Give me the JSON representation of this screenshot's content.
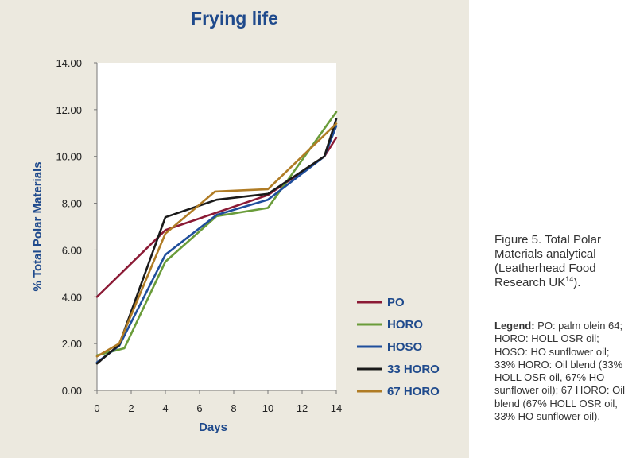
{
  "chart_data": {
    "type": "line",
    "title": "Frying life",
    "xlabel": "Days",
    "ylabel": "% Total Polar Materials",
    "xlim": [
      0,
      14
    ],
    "ylim": [
      0,
      14
    ],
    "xticks": [
      0,
      2,
      4,
      6,
      8,
      10,
      12,
      14
    ],
    "yticks": [
      0,
      2,
      4,
      6,
      8,
      10,
      12,
      14
    ],
    "ytick_labels": [
      "0.00",
      "2.00",
      "4.00",
      "6.00",
      "8.00",
      "10.00",
      "12.00",
      "14.00"
    ],
    "grid": false,
    "legend_position": "bottom-right",
    "series": [
      {
        "name": "PO",
        "color": "#8b1a35",
        "x": [
          0,
          4,
          10,
          13.3,
          14
        ],
        "y": [
          4.0,
          6.85,
          8.35,
          10.0,
          10.8
        ]
      },
      {
        "name": "HORO",
        "color": "#6a9c3a",
        "x": [
          0,
          1.6,
          4,
          7,
          10,
          14
        ],
        "y": [
          1.5,
          1.8,
          5.5,
          7.45,
          7.8,
          11.9
        ]
      },
      {
        "name": "HOSO",
        "color": "#1f4e9c",
        "x": [
          0,
          1.3,
          4,
          7,
          10,
          13.3,
          14
        ],
        "y": [
          1.2,
          1.9,
          5.8,
          7.5,
          8.15,
          10.0,
          11.3
        ]
      },
      {
        "name": "33 HORO",
        "color": "#1a1a1a",
        "x": [
          0,
          1.3,
          4,
          7,
          10,
          13.3,
          14
        ],
        "y": [
          1.15,
          1.95,
          7.4,
          8.15,
          8.4,
          10.0,
          11.6
        ]
      },
      {
        "name": "67 HORO",
        "color": "#b07c25",
        "x": [
          0,
          1.3,
          4,
          6.9,
          10,
          14
        ],
        "y": [
          1.45,
          2.0,
          6.7,
          8.5,
          8.6,
          11.4
        ]
      }
    ]
  },
  "caption": {
    "text": "Figure 5. Total Polar Materials analytical (Leatherhead Food Research UK",
    "superscript": "14",
    "suffix": ")."
  },
  "legend_description": {
    "label": "Legend:",
    "text": " PO: palm olein 64; HORO: HOLL OSR oil; HOSO: HO sunflower oil; 33% HORO: Oil blend (33% HOLL OSR oil, 67% HO sunflower oil); 67 HORO: Oil blend (67% HOLL OSR oil, 33% HO sunflower oil)."
  }
}
